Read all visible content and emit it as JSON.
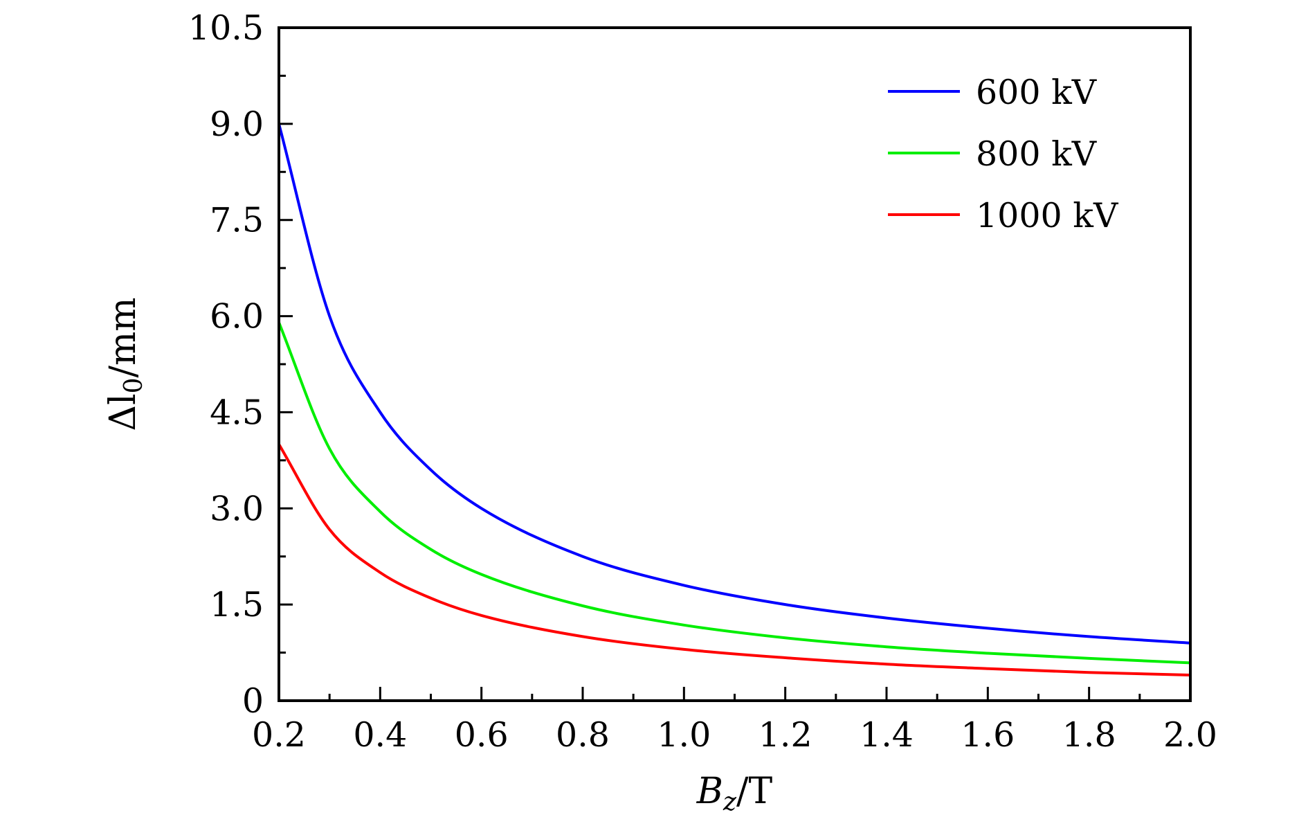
{
  "chart_data": {
    "type": "line",
    "xlabel": {
      "main": "B",
      "sub": "z",
      "unit": "/T"
    },
    "ylabel": {
      "main": "Δl",
      "sub": "0",
      "unit": "/mm"
    },
    "xlim": [
      0.2,
      2.0
    ],
    "ylim": [
      0,
      10.5
    ],
    "x_ticks": [
      0.2,
      0.4,
      0.6,
      0.8,
      1.0,
      1.2,
      1.4,
      1.6,
      1.8,
      2.0
    ],
    "x_tick_labels": [
      "0.2",
      "0.4",
      "0.6",
      "0.8",
      "1.0",
      "1.2",
      "1.4",
      "1.6",
      "1.8",
      "2.0"
    ],
    "y_ticks": [
      0,
      1.5,
      3.0,
      4.5,
      6.0,
      7.5,
      9.0,
      10.5
    ],
    "y_tick_labels": [
      "0",
      "1.5",
      "3.0",
      "4.5",
      "6.0",
      "7.5",
      "9.0",
      "10.5"
    ],
    "grid": false,
    "legend_position": "top-right",
    "x": [
      0.2,
      0.3,
      0.4,
      0.5,
      0.6,
      0.8,
      1.0,
      1.2,
      1.4,
      1.6,
      1.8,
      2.0
    ],
    "series": [
      {
        "name": "600 kV",
        "color": "#0000ff",
        "values": [
          9.0,
          6.0,
          4.5,
          3.6,
          3.0,
          2.25,
          1.8,
          1.5,
          1.29,
          1.13,
          1.0,
          0.9
        ]
      },
      {
        "name": "800 kV",
        "color": "#00ee00",
        "values": [
          5.9,
          3.93,
          2.95,
          2.36,
          1.97,
          1.48,
          1.18,
          0.98,
          0.84,
          0.74,
          0.66,
          0.59
        ]
      },
      {
        "name": "1000 kV",
        "color": "#ff0000",
        "values": [
          4.0,
          2.67,
          2.0,
          1.6,
          1.33,
          1.0,
          0.8,
          0.67,
          0.57,
          0.5,
          0.44,
          0.4
        ]
      }
    ]
  }
}
